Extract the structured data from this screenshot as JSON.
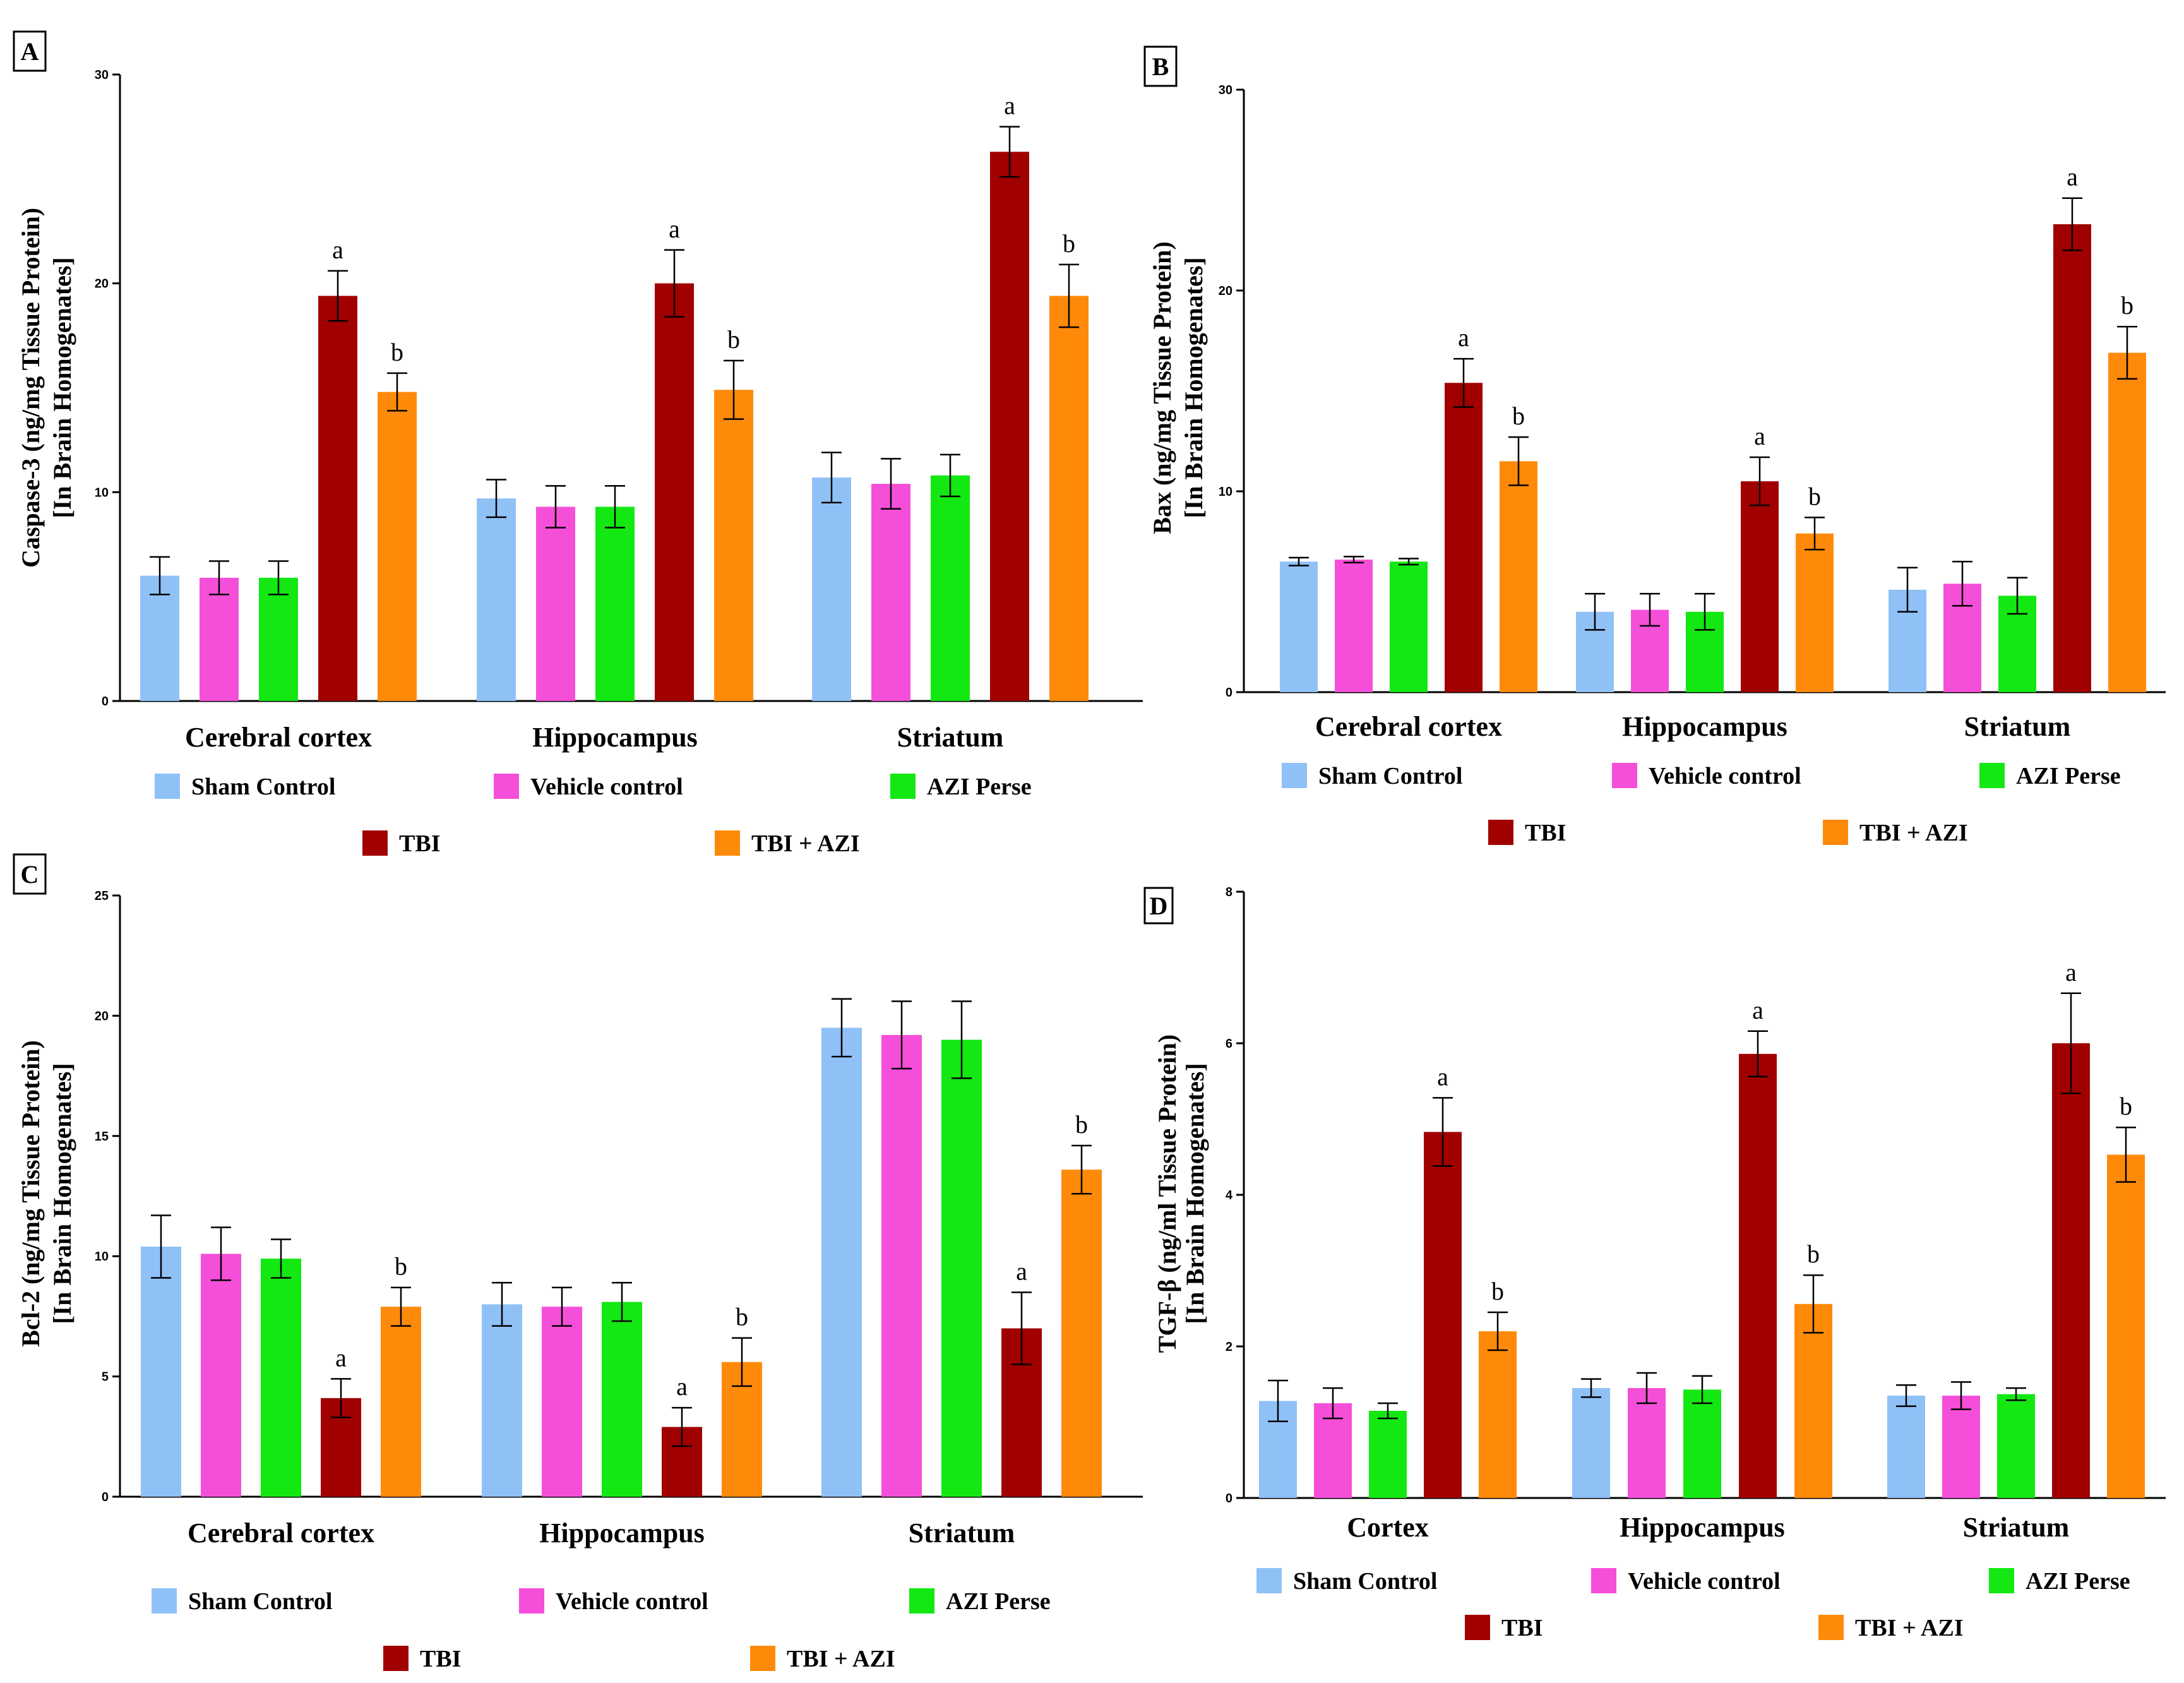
{
  "colors": {
    "sham": "#8fc1f7",
    "vehicle": "#f54fd9",
    "azi": "#13e813",
    "tbi": "#a00000",
    "tbi_azi": "#ff8a0a"
  },
  "legend": [
    {
      "key": "sham",
      "label": "Sham Control"
    },
    {
      "key": "vehicle",
      "label": "Vehicle control"
    },
    {
      "key": "azi",
      "label": "AZI Perse"
    },
    {
      "key": "tbi",
      "label": "TBI"
    },
    {
      "key": "tbi_azi",
      "label": "TBI + AZI"
    }
  ],
  "chart_data": [
    {
      "panel": "A",
      "type": "bar",
      "ylabel": "Caspase-3 (ng/mg Tissue Protein)",
      "ylabel2": "[In Brain Homogenates]",
      "ylim": [
        0,
        30
      ],
      "yticks": [
        0,
        10,
        20,
        30
      ],
      "categories": [
        "Cerebral cortex",
        "Hippocampus",
        "Striatum"
      ],
      "series": [
        {
          "key": "sham",
          "name": "Sham Control",
          "values": [
            6.0,
            9.7,
            10.7
          ],
          "errors": [
            0.9,
            0.9,
            1.2
          ]
        },
        {
          "key": "vehicle",
          "name": "Vehicle control",
          "values": [
            5.9,
            9.3,
            10.4
          ],
          "errors": [
            0.8,
            1.0,
            1.2
          ]
        },
        {
          "key": "azi",
          "name": "AZI Perse",
          "values": [
            5.9,
            9.3,
            10.8
          ],
          "errors": [
            0.8,
            1.0,
            1.0
          ]
        },
        {
          "key": "tbi",
          "name": "TBI",
          "values": [
            19.4,
            20.0,
            26.3
          ],
          "errors": [
            1.2,
            1.6,
            1.2
          ],
          "labels": [
            "a",
            "a",
            "a"
          ]
        },
        {
          "key": "tbi_azi",
          "name": "TBI + AZI",
          "values": [
            14.8,
            14.9,
            19.4
          ],
          "errors": [
            0.9,
            1.4,
            1.5
          ],
          "labels": [
            "b",
            "b",
            "b"
          ]
        }
      ]
    },
    {
      "panel": "B",
      "type": "bar",
      "ylabel": "Bax (ng/mg Tissue Protein)",
      "ylabel2": "[In Brain Homogenates]",
      "ylim": [
        0,
        30
      ],
      "yticks": [
        0,
        10,
        20,
        30
      ],
      "categories": [
        "Cerebral cortex",
        "Hippocampus",
        "Striatum"
      ],
      "series": [
        {
          "key": "sham",
          "name": "Sham Control",
          "values": [
            6.5,
            4.0,
            5.1
          ],
          "errors": [
            0.2,
            0.9,
            1.1
          ]
        },
        {
          "key": "vehicle",
          "name": "Vehicle control",
          "values": [
            6.6,
            4.1,
            5.4
          ],
          "errors": [
            0.15,
            0.8,
            1.1
          ]
        },
        {
          "key": "azi",
          "name": "AZI Perse",
          "values": [
            6.5,
            4.0,
            4.8
          ],
          "errors": [
            0.15,
            0.9,
            0.9
          ]
        },
        {
          "key": "tbi",
          "name": "TBI",
          "values": [
            15.4,
            10.5,
            23.3
          ],
          "errors": [
            1.2,
            1.2,
            1.3
          ],
          "labels": [
            "a",
            "a",
            "a"
          ]
        },
        {
          "key": "tbi_azi",
          "name": "TBI + AZI",
          "values": [
            11.5,
            7.9,
            16.9
          ],
          "errors": [
            1.2,
            0.8,
            1.3
          ],
          "labels": [
            "b",
            "b",
            "b"
          ]
        }
      ]
    },
    {
      "panel": "C",
      "type": "bar",
      "ylabel": "Bcl-2 (ng/mg Tissue Protein)",
      "ylabel2": "[In Brain Homogenates]",
      "ylim": [
        0,
        25
      ],
      "yticks": [
        0,
        5,
        10,
        15,
        20,
        25
      ],
      "categories": [
        "Cerebral cortex",
        "Hippocampus",
        "Striatum"
      ],
      "series": [
        {
          "key": "sham",
          "name": "Sham Control",
          "values": [
            10.4,
            8.0,
            19.5
          ],
          "errors": [
            1.3,
            0.9,
            1.2
          ]
        },
        {
          "key": "vehicle",
          "name": "Vehicle control",
          "values": [
            10.1,
            7.9,
            19.2
          ],
          "errors": [
            1.1,
            0.8,
            1.4
          ]
        },
        {
          "key": "azi",
          "name": "AZI Perse",
          "values": [
            9.9,
            8.1,
            19.0
          ],
          "errors": [
            0.8,
            0.8,
            1.6
          ]
        },
        {
          "key": "tbi",
          "name": "TBI",
          "values": [
            4.1,
            2.9,
            7.0
          ],
          "errors": [
            0.8,
            0.8,
            1.5
          ],
          "labels": [
            "a",
            "a",
            "a"
          ]
        },
        {
          "key": "tbi_azi",
          "name": "TBI + AZI",
          "values": [
            7.9,
            5.6,
            13.6
          ],
          "errors": [
            0.8,
            1.0,
            1.0
          ],
          "labels": [
            "b",
            "b",
            "b"
          ]
        }
      ]
    },
    {
      "panel": "D",
      "type": "bar",
      "ylabel": "TGF-β (ng/ml Tissue Protein)",
      "ylabel2": "[In Brain Homogenates]",
      "ylim": [
        0,
        8
      ],
      "yticks": [
        0,
        2,
        4,
        6,
        8
      ],
      "categories": [
        "Cortex",
        "Hippocampus",
        "Striatum"
      ],
      "series": [
        {
          "key": "sham",
          "name": "Sham Control",
          "values": [
            1.28,
            1.45,
            1.35
          ],
          "errors": [
            0.27,
            0.12,
            0.14
          ]
        },
        {
          "key": "vehicle",
          "name": "Vehicle control",
          "values": [
            1.25,
            1.45,
            1.35
          ],
          "errors": [
            0.2,
            0.2,
            0.18
          ]
        },
        {
          "key": "azi",
          "name": "AZI Perse",
          "values": [
            1.15,
            1.43,
            1.37
          ],
          "errors": [
            0.1,
            0.18,
            0.08
          ]
        },
        {
          "key": "tbi",
          "name": "TBI",
          "values": [
            4.83,
            5.86,
            6.0
          ],
          "errors": [
            0.45,
            0.3,
            0.66
          ],
          "labels": [
            "a",
            "a",
            "a"
          ]
        },
        {
          "key": "tbi_azi",
          "name": "TBI + AZI",
          "values": [
            2.2,
            2.56,
            4.53
          ],
          "errors": [
            0.25,
            0.38,
            0.36
          ],
          "labels": [
            "b",
            "b",
            "b"
          ]
        }
      ]
    }
  ]
}
